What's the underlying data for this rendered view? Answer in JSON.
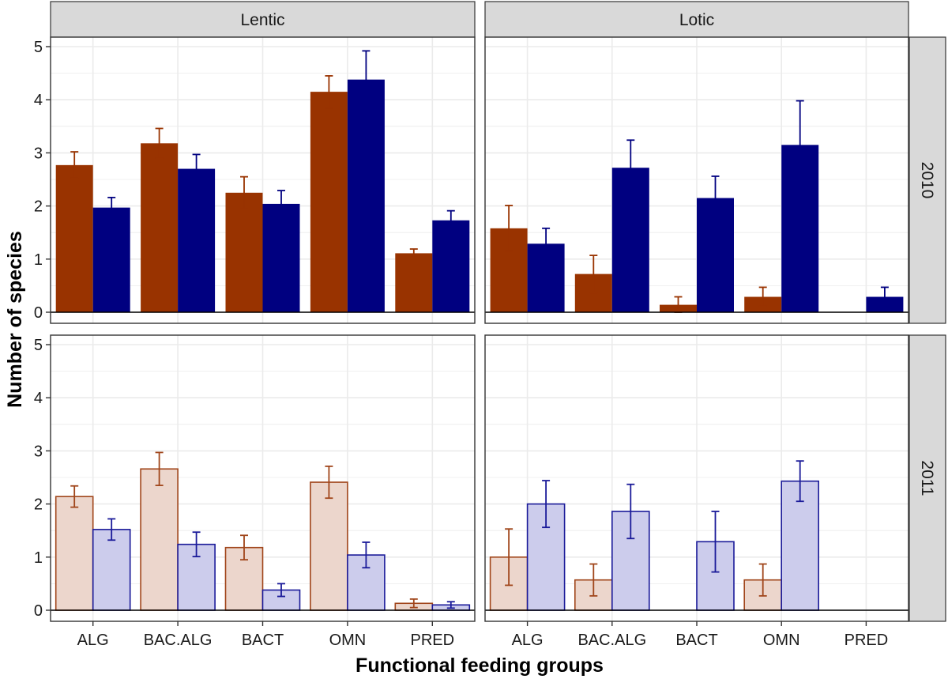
{
  "chart_data": {
    "type": "bar",
    "title": "",
    "xlabel": "Functional feeding groups",
    "ylabel": "Number of species",
    "ylim": [
      0,
      5
    ],
    "yticks": [
      0,
      1,
      2,
      3,
      4,
      5
    ],
    "grid": true,
    "categories": [
      "ALG",
      "BAC.ALG",
      "BACT",
      "OMN",
      "PRED"
    ],
    "columns": [
      "Lentic",
      "Lotic"
    ],
    "rows": [
      "2010",
      "2011"
    ],
    "colors": {
      "series1_solid": "#993300",
      "series2_solid": "#000080",
      "series1_light_fill": "#ecd6cc",
      "series2_light_fill": "#ccccec",
      "series1_outline": "#a0451a",
      "series2_outline": "#1a1a99",
      "panel_border": "#333333",
      "strip_fill": "#d9d9d9",
      "grid": "#ebebeb"
    },
    "panels": [
      {
        "column": "Lentic",
        "row": "2010",
        "style": "solid",
        "series": [
          {
            "name": "series1",
            "values": [
              2.77,
              3.18,
              2.25,
              4.15,
              1.11
            ],
            "errors": [
              0.25,
              0.28,
              0.3,
              0.3,
              0.08
            ]
          },
          {
            "name": "series2",
            "values": [
              1.97,
              2.7,
              2.04,
              4.38,
              1.73
            ],
            "errors": [
              0.19,
              0.27,
              0.25,
              0.54,
              0.18
            ]
          }
        ]
      },
      {
        "column": "Lotic",
        "row": "2010",
        "style": "solid",
        "series": [
          {
            "name": "series1",
            "values": [
              1.58,
              0.72,
              0.14,
              0.29,
              0
            ],
            "errors": [
              0.43,
              0.35,
              0.15,
              0.18,
              0
            ]
          },
          {
            "name": "series2",
            "values": [
              1.29,
              2.72,
              2.15,
              3.15,
              0.29
            ],
            "errors": [
              0.29,
              0.52,
              0.41,
              0.83,
              0.18
            ]
          }
        ]
      },
      {
        "column": "Lentic",
        "row": "2011",
        "style": "light",
        "series": [
          {
            "name": "series1",
            "values": [
              2.14,
              2.66,
              1.18,
              2.41,
              0.13
            ],
            "errors": [
              0.2,
              0.31,
              0.23,
              0.3,
              0.08
            ]
          },
          {
            "name": "series2",
            "values": [
              1.52,
              1.24,
              0.38,
              1.04,
              0.1
            ],
            "errors": [
              0.2,
              0.23,
              0.12,
              0.24,
              0.06
            ]
          }
        ]
      },
      {
        "column": "Lotic",
        "row": "2011",
        "style": "light",
        "series": [
          {
            "name": "series1",
            "values": [
              1.0,
              0.57,
              0,
              0.57,
              0
            ],
            "errors": [
              0.53,
              0.3,
              0,
              0.3,
              0
            ]
          },
          {
            "name": "series2",
            "values": [
              2.0,
              1.86,
              1.29,
              2.43,
              0
            ],
            "errors": [
              0.44,
              0.51,
              0.57,
              0.38,
              0
            ]
          }
        ]
      }
    ]
  }
}
